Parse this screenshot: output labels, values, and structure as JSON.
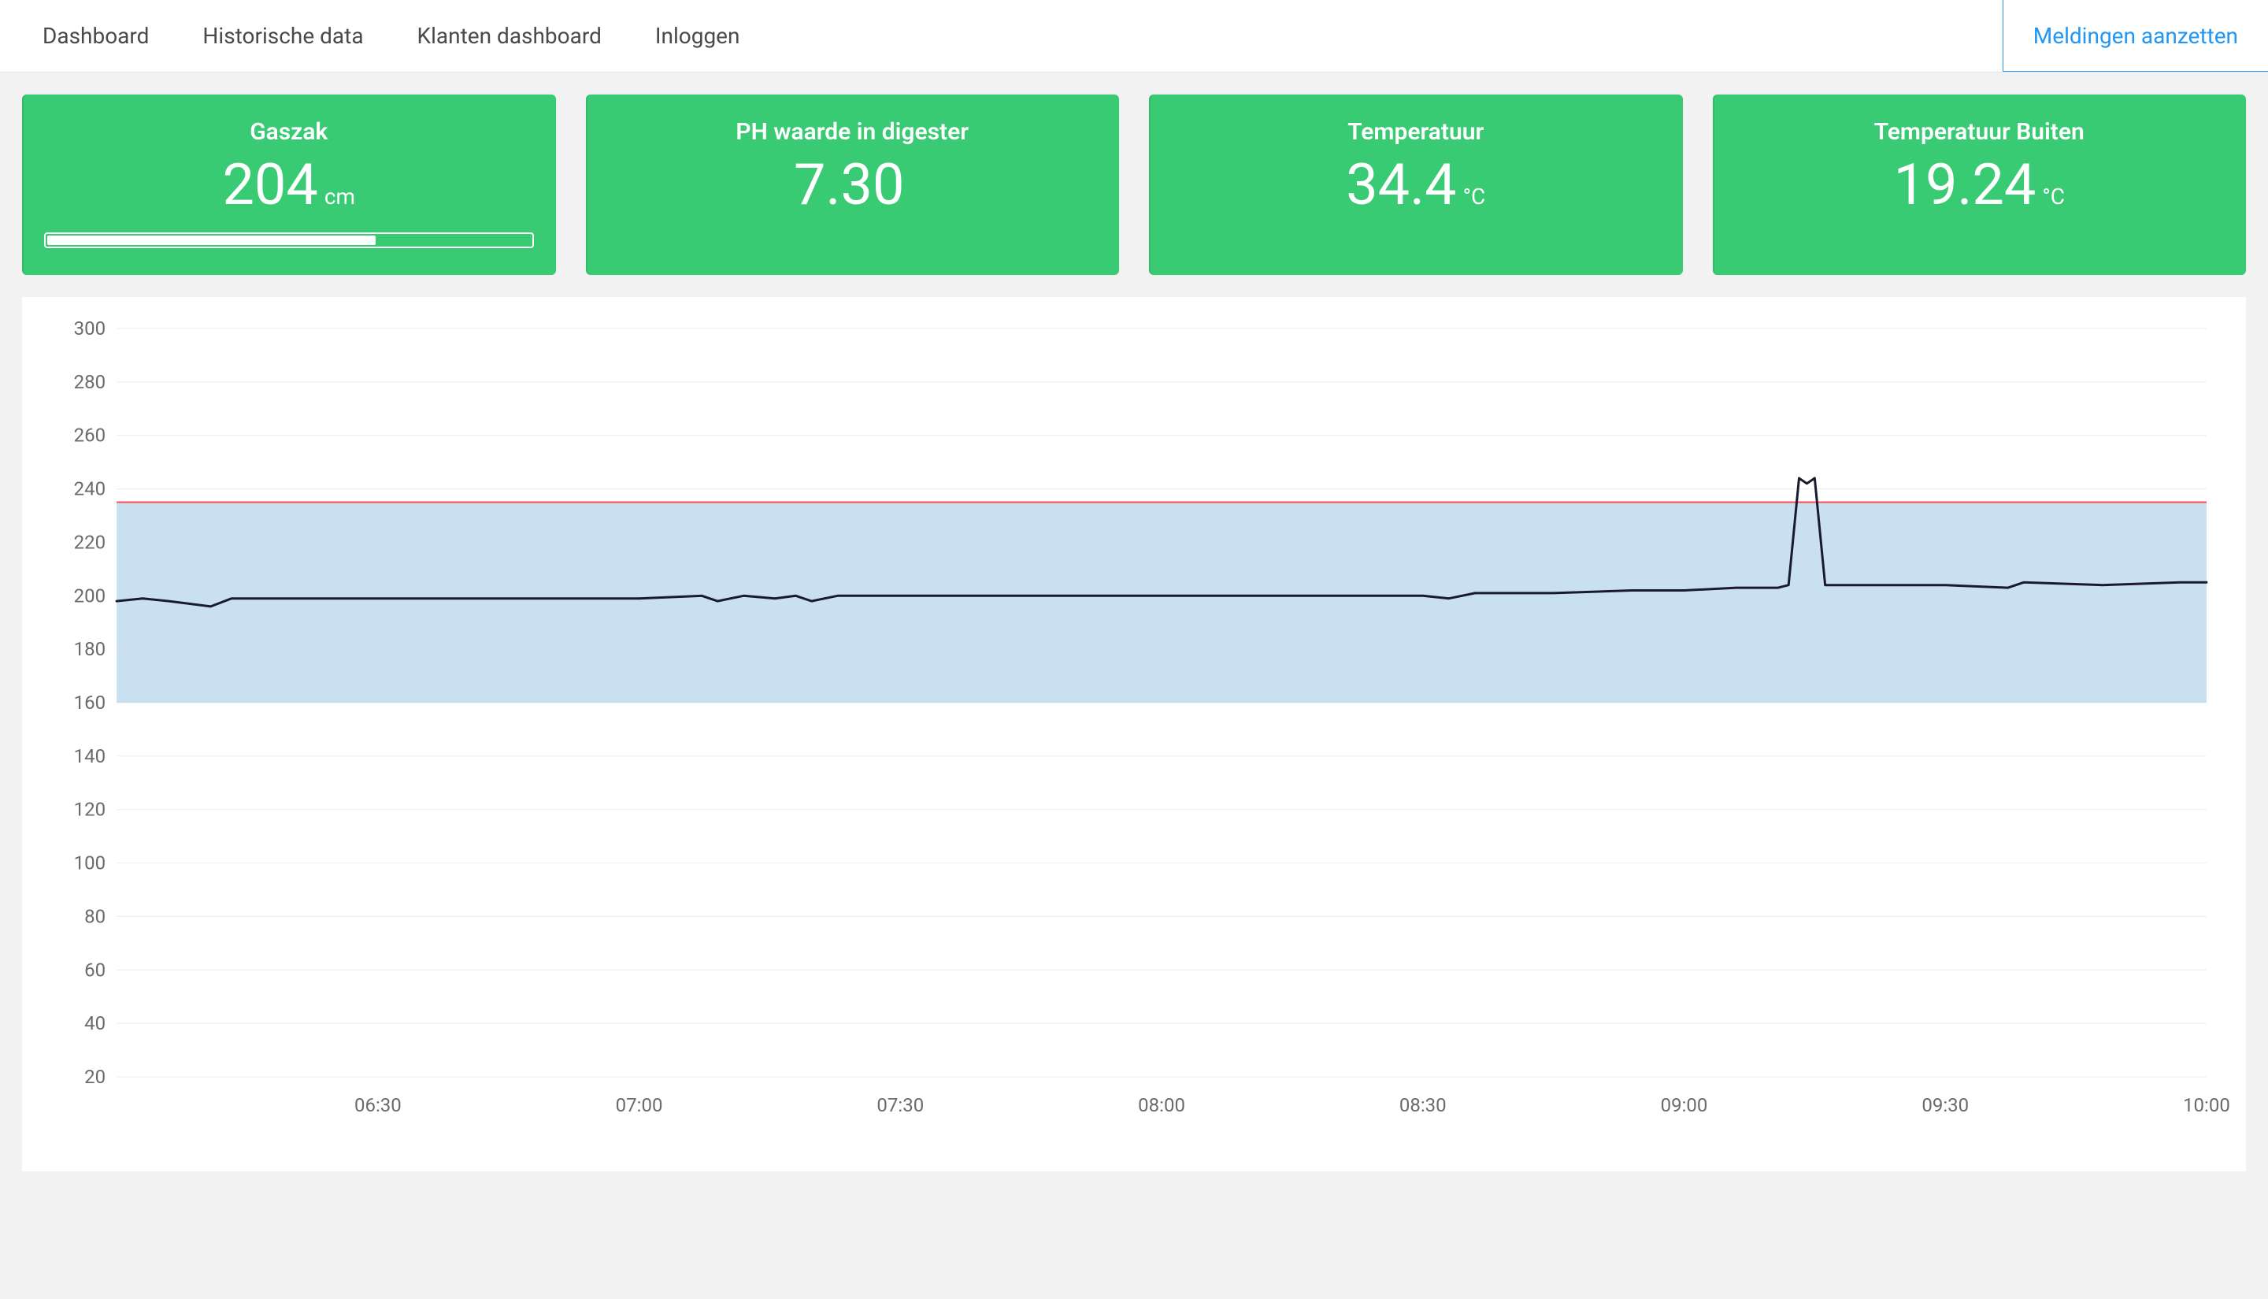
{
  "nav": {
    "items": [
      {
        "label": "Dashboard"
      },
      {
        "label": "Historische data"
      },
      {
        "label": "Klanten dashboard"
      },
      {
        "label": "Inloggen"
      }
    ],
    "right_button_label": "Meldingen aanzetten"
  },
  "colors": {
    "card_bg": "#39ca74",
    "card_text": "#ffffff",
    "page_bg": "#f2f2f2",
    "panel_bg": "#ffffff",
    "nav_text": "#4a4a4a",
    "accent_blue": "#2196f3"
  },
  "cards": [
    {
      "title": "Gaszak",
      "value": "204",
      "unit": "cm",
      "progress_pct": 68
    },
    {
      "title": "PH waarde in digester",
      "value": "7.30",
      "unit": ""
    },
    {
      "title": "Temperatuur",
      "value": "34.4",
      "unit": "°C"
    },
    {
      "title": "Temperatuur Buiten",
      "value": "19.24",
      "unit": "°C"
    }
  ],
  "chart": {
    "type": "line",
    "y_axis": {
      "min": 20,
      "max": 300,
      "tick_step": 20,
      "label_fontsize": 24,
      "label_color": "#6b6b6b"
    },
    "x_axis": {
      "ticks": [
        "06:30",
        "07:00",
        "07:30",
        "08:00",
        "08:30",
        "09:00",
        "09:30",
        "10:00"
      ],
      "domain_start": 6.0,
      "domain_end": 10.0,
      "label_fontsize": 24,
      "label_color": "#6b6b6b"
    },
    "grid_color": "#ececec",
    "band": {
      "low": 160,
      "high": 235,
      "fill": "#c0dbef",
      "opacity": 0.85
    },
    "threshold": {
      "value": 235,
      "color": "#ff4d4d",
      "width": 2
    },
    "line": {
      "color": "#1a1a2e",
      "width": 3
    },
    "series": [
      {
        "t": 6.0,
        "v": 198
      },
      {
        "t": 6.05,
        "v": 199
      },
      {
        "t": 6.1,
        "v": 198
      },
      {
        "t": 6.18,
        "v": 196
      },
      {
        "t": 6.22,
        "v": 199
      },
      {
        "t": 6.3,
        "v": 199
      },
      {
        "t": 6.4,
        "v": 199
      },
      {
        "t": 6.55,
        "v": 199
      },
      {
        "t": 6.7,
        "v": 199
      },
      {
        "t": 6.85,
        "v": 199
      },
      {
        "t": 7.0,
        "v": 199
      },
      {
        "t": 7.12,
        "v": 200
      },
      {
        "t": 7.15,
        "v": 198
      },
      {
        "t": 7.2,
        "v": 200
      },
      {
        "t": 7.26,
        "v": 199
      },
      {
        "t": 7.3,
        "v": 200
      },
      {
        "t": 7.33,
        "v": 198
      },
      {
        "t": 7.38,
        "v": 200
      },
      {
        "t": 7.5,
        "v": 200
      },
      {
        "t": 7.7,
        "v": 200
      },
      {
        "t": 7.9,
        "v": 200
      },
      {
        "t": 8.1,
        "v": 200
      },
      {
        "t": 8.3,
        "v": 200
      },
      {
        "t": 8.5,
        "v": 200
      },
      {
        "t": 8.55,
        "v": 199
      },
      {
        "t": 8.6,
        "v": 201
      },
      {
        "t": 8.75,
        "v": 201
      },
      {
        "t": 8.9,
        "v": 202
      },
      {
        "t": 9.0,
        "v": 202
      },
      {
        "t": 9.1,
        "v": 203
      },
      {
        "t": 9.18,
        "v": 203
      },
      {
        "t": 9.2,
        "v": 204
      },
      {
        "t": 9.22,
        "v": 244
      },
      {
        "t": 9.235,
        "v": 242
      },
      {
        "t": 9.25,
        "v": 244
      },
      {
        "t": 9.27,
        "v": 204
      },
      {
        "t": 9.35,
        "v": 204
      },
      {
        "t": 9.5,
        "v": 204
      },
      {
        "t": 9.62,
        "v": 203
      },
      {
        "t": 9.65,
        "v": 205
      },
      {
        "t": 9.8,
        "v": 204
      },
      {
        "t": 9.95,
        "v": 205
      },
      {
        "t": 10.0,
        "v": 205
      }
    ]
  }
}
